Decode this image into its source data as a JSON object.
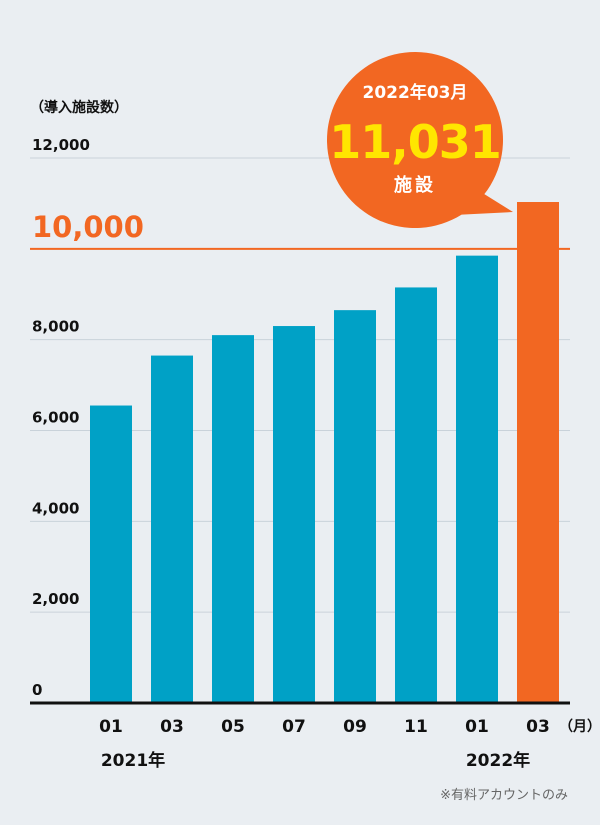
{
  "chart_data": {
    "type": "bar",
    "ylabel": "（導入施設数）",
    "ylim": [
      0,
      12000
    ],
    "yticks": [
      "0",
      "2,000",
      "4,000",
      "6,000",
      "8,000",
      "12,000"
    ],
    "reference_line": {
      "value": 10000,
      "label": "10,000",
      "color": "#f26722"
    },
    "categories": [
      "01",
      "03",
      "05",
      "07",
      "09",
      "11",
      "01",
      "03"
    ],
    "x_unit": "（月）",
    "year_labels": [
      "2021年",
      "2022年"
    ],
    "values": [
      6550,
      7650,
      8100,
      8300,
      8650,
      9150,
      9850,
      11031
    ],
    "highlight_index": 7,
    "bar_color": "#00a1c6",
    "highlight_color": "#f26722",
    "callout": {
      "date": "2022年03月",
      "value": "11,031",
      "unit": "施設",
      "bubble_color": "#f26722",
      "value_color": "#ffe600"
    },
    "footnote": "※有料アカウントのみ",
    "grid": true
  }
}
